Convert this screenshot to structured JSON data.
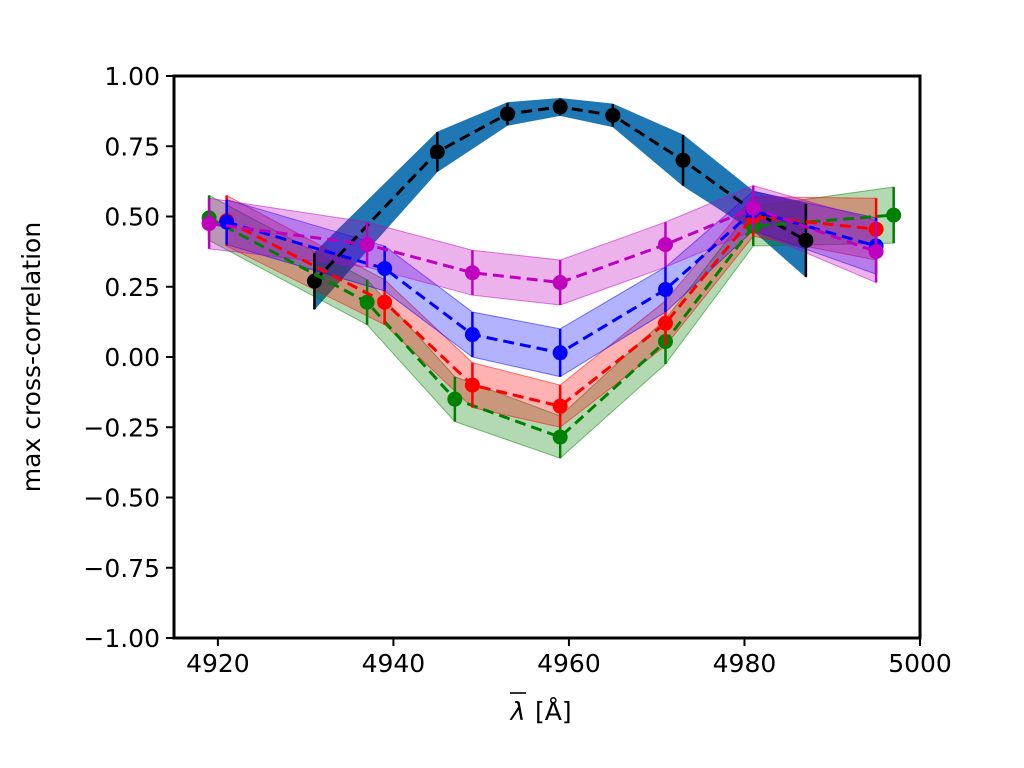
{
  "chart_data": {
    "type": "line",
    "title": "",
    "xlabel": "λ̄ [Å]",
    "xlabel_main": "λ",
    "xlabel_unit": "[Å]",
    "ylabel": "max cross-correlation",
    "xlim": [
      4915,
      5000
    ],
    "ylim": [
      -1.0,
      1.0
    ],
    "x_ticks": [
      4920,
      4940,
      4960,
      4980,
      5000
    ],
    "y_ticks": [
      1.0,
      0.75,
      0.5,
      0.25,
      0.0,
      -0.25,
      -0.5,
      -0.75,
      -1.0
    ],
    "x_tick_labels": [
      "4920",
      "4940",
      "4960",
      "4980",
      "5000"
    ],
    "y_tick_labels": [
      "1.00",
      "0.75",
      "0.50",
      "0.25",
      "0.00",
      "−0.25",
      "−0.50",
      "−0.75",
      "−1.00"
    ],
    "grid": false,
    "legend": "none",
    "series": [
      {
        "color": "#000000",
        "band_color": "#1f77b4",
        "band_opacity": 1.0,
        "x": [
          4931,
          4945,
          4953,
          4959,
          4965,
          4973,
          4981,
          4987
        ],
        "y": [
          0.27,
          0.73,
          0.865,
          0.89,
          0.86,
          0.7,
          0.52,
          0.415
        ],
        "err": [
          0.1,
          0.07,
          0.04,
          0.03,
          0.04,
          0.09,
          0.07,
          0.13
        ]
      },
      {
        "color": "#008000",
        "band_color": "#008000",
        "band_opacity": 0.3,
        "x": [
          4919,
          4937,
          4947,
          4959,
          4971,
          4981,
          4997
        ],
        "y": [
          0.495,
          0.195,
          -0.15,
          -0.285,
          0.055,
          0.465,
          0.505
        ],
        "err": [
          0.08,
          0.08,
          0.08,
          0.075,
          0.08,
          0.07,
          0.1
        ]
      },
      {
        "color": "#ff0000",
        "band_color": "#ff0000",
        "band_opacity": 0.3,
        "x": [
          4921,
          4939,
          4949,
          4959,
          4971,
          4981,
          4995
        ],
        "y": [
          0.485,
          0.195,
          -0.1,
          -0.175,
          0.12,
          0.5,
          0.455
        ],
        "err": [
          0.09,
          0.08,
          0.08,
          0.075,
          0.08,
          0.07,
          0.11
        ]
      },
      {
        "color": "#0000ff",
        "band_color": "#0000ff",
        "band_opacity": 0.3,
        "x": [
          4921,
          4939,
          4949,
          4959,
          4971,
          4981,
          4995
        ],
        "y": [
          0.48,
          0.315,
          0.08,
          0.015,
          0.24,
          0.52,
          0.395
        ],
        "err": [
          0.08,
          0.08,
          0.08,
          0.085,
          0.08,
          0.07,
          0.1
        ]
      },
      {
        "color": "#bf00bf",
        "band_color": "#bf00bf",
        "band_opacity": 0.3,
        "x": [
          4919,
          4937,
          4949,
          4959,
          4971,
          4981,
          4995
        ],
        "y": [
          0.475,
          0.4,
          0.3,
          0.265,
          0.4,
          0.53,
          0.375
        ],
        "err": [
          0.09,
          0.08,
          0.08,
          0.08,
          0.08,
          0.08,
          0.11
        ]
      }
    ]
  }
}
